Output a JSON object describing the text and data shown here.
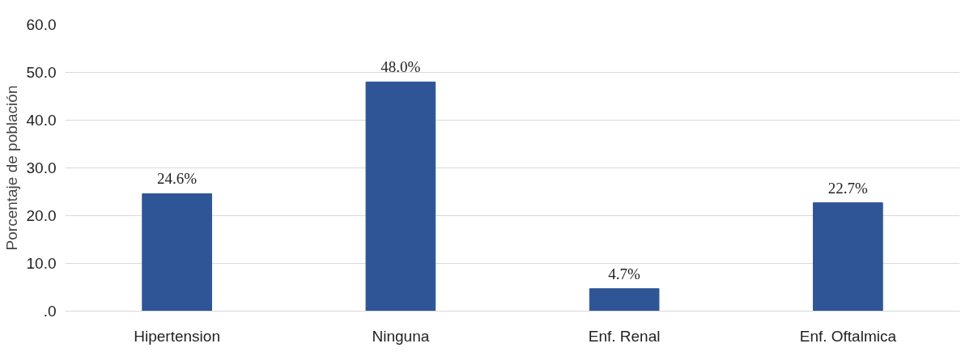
{
  "chart_data": {
    "type": "bar",
    "ylabel": "Porcentaje de población",
    "categories": [
      "Hipertension",
      "Ninguna",
      "Enf. Renal",
      "Enf. Oftalmica"
    ],
    "values": [
      24.6,
      48.0,
      4.7,
      22.7
    ],
    "value_labels": [
      "24.6%",
      "48.0%",
      "4.7%",
      "22.7%"
    ],
    "color": "#2f5597",
    "ylim": [
      0,
      60
    ],
    "yticks": [
      {
        "value": 0,
        "label": ".0"
      },
      {
        "value": 10,
        "label": "10.0"
      },
      {
        "value": 20,
        "label": "20.0"
      },
      {
        "value": 30,
        "label": "30.0"
      },
      {
        "value": 40,
        "label": "40.0"
      },
      {
        "value": 50,
        "label": "50.0"
      },
      {
        "value": 60,
        "label": "60.0"
      }
    ],
    "grid": "y"
  }
}
